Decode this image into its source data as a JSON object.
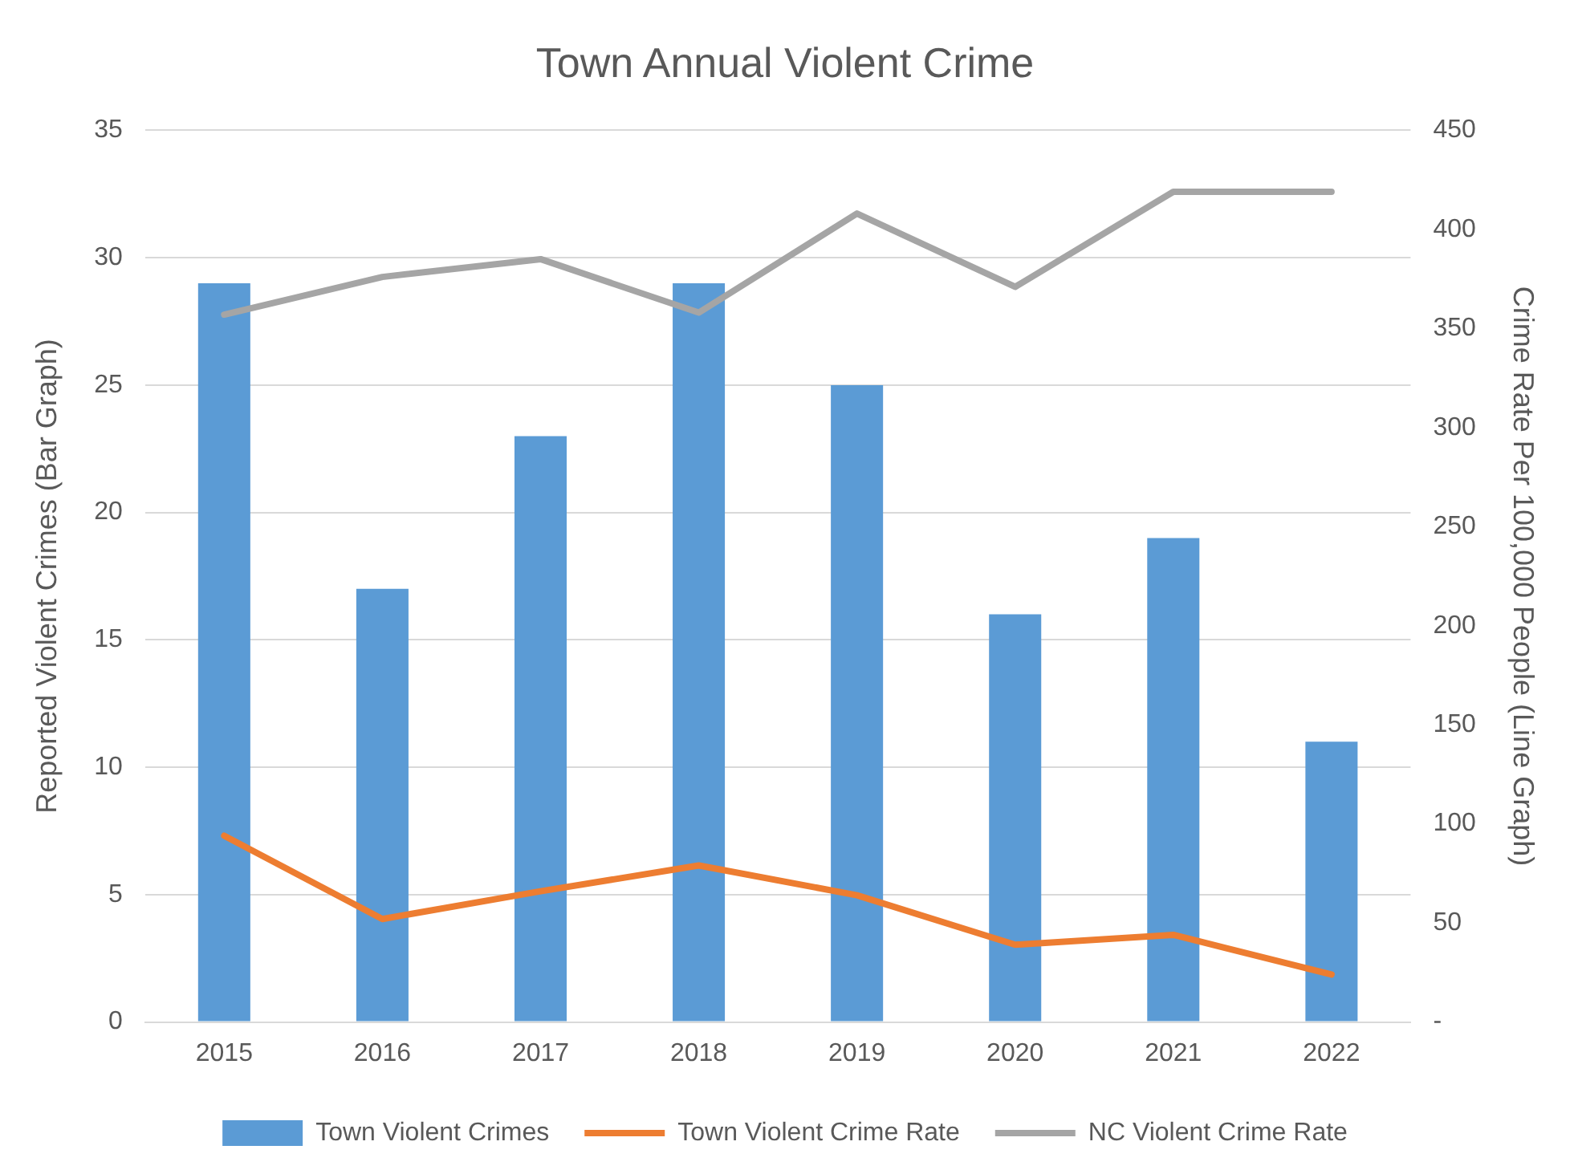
{
  "chart_data": {
    "type": "bar",
    "title": "Town Annual Violent Crime",
    "ylabel": "Reported Violent Crimes (Bar Graph)",
    "y2label": "Crime Rate Per 100,000 People (Line Graph)",
    "categories": [
      "2015",
      "2016",
      "2017",
      "2018",
      "2019",
      "2020",
      "2021",
      "2022"
    ],
    "series": [
      {
        "name": "Town Violent Crimes",
        "color": "#5b9bd5",
        "values": [
          29,
          17,
          23,
          29,
          25,
          16,
          19,
          11
        ]
      },
      {
        "name": "Town Violent Crime Rate",
        "type": "line",
        "axis": "y2",
        "color": "#ed7d31",
        "values": [
          94,
          52,
          66,
          79,
          64,
          39,
          44,
          24
        ]
      },
      {
        "name": "NC Violent Crime Rate",
        "type": "line",
        "axis": "y2",
        "color": "#a5a5a5",
        "values": [
          357,
          376,
          385,
          358,
          408,
          371,
          419,
          419
        ]
      }
    ],
    "ylim": [
      0,
      35
    ],
    "yticks": [
      0,
      5,
      10,
      15,
      20,
      25,
      30,
      35
    ],
    "y2lim": [
      0,
      450
    ],
    "y2ticks": [
      {
        "value": 0,
        "label": "-"
      },
      50,
      100,
      150,
      200,
      250,
      300,
      350,
      400,
      450
    ],
    "grid": "y",
    "legend": "bottom",
    "marker": "none",
    "line_style": "solid"
  }
}
